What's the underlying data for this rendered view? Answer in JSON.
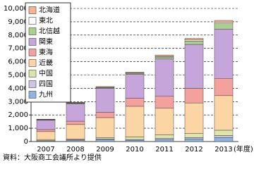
{
  "chart_data": {
    "type": "stacked-bar",
    "categories": [
      "2007",
      "2008",
      "2009",
      "2010",
      "2011",
      "2012",
      "2013"
    ],
    "x_label": "(年度)",
    "source": "資料：大阪商工会議所より提供",
    "ylim": [
      0,
      10000
    ],
    "yticks": [
      0,
      {
        "value": 1000,
        "label": "1,000"
      },
      {
        "value": 2000,
        "label": "2,000"
      },
      {
        "value": 3000,
        "label": "3,000"
      },
      {
        "value": 4000,
        "label": "4,000"
      },
      {
        "value": 5000,
        "label": "5,000"
      },
      {
        "value": 6000,
        "label": "6,000"
      },
      {
        "value": 7000,
        "label": "7,000"
      },
      {
        "value": 8000,
        "label": "8,000"
      },
      {
        "value": 9000,
        "label": "9,000"
      },
      {
        "value": 10000,
        "label": "10,000"
      }
    ],
    "grid": true,
    "legend": "top-left",
    "series": [
      {
        "name": "北海道",
        "color": "#f8b48c",
        "values": [
          30,
          40,
          50,
          50,
          100,
          120,
          150
        ]
      },
      {
        "name": "東北",
        "color": "#ffffff",
        "values": [
          20,
          30,
          30,
          30,
          50,
          80,
          100
        ]
      },
      {
        "name": "北信越",
        "color": "#a9d18e",
        "values": [
          30,
          50,
          50,
          80,
          150,
          250,
          400
        ]
      },
      {
        "name": "関東",
        "color": "#c6a6da",
        "values": [
          700,
          1300,
          1800,
          1800,
          2800,
          3300,
          3700
        ]
      },
      {
        "name": "東海",
        "color": "#f4a09c",
        "values": [
          150,
          250,
          400,
          600,
          900,
          1100,
          1300
        ]
      },
      {
        "name": "近畿",
        "color": "#fcd5a4",
        "values": [
          600,
          1100,
          1500,
          2300,
          2000,
          2300,
          2600
        ]
      },
      {
        "name": "中国",
        "color": "#dbe6a8",
        "values": [
          80,
          50,
          100,
          200,
          250,
          300,
          400
        ]
      },
      {
        "name": "四国",
        "color": "#cdc3e2",
        "values": [
          20,
          30,
          50,
          50,
          100,
          100,
          150
        ]
      },
      {
        "name": "九州",
        "color": "#8fb4e3",
        "values": [
          50,
          100,
          150,
          100,
          150,
          200,
          300
        ]
      }
    ]
  }
}
